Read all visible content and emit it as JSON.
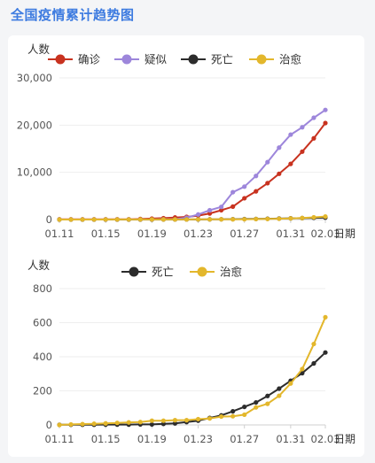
{
  "page": {
    "title": "全国疫情累计趋势图"
  },
  "charts": [
    {
      "ylabel": "人数",
      "xlabel": "日期",
      "yticks": [
        "0",
        "10,000",
        "20,000",
        "30,000"
      ],
      "xticks": [
        "01.11",
        "01.15",
        "01.19",
        "01.23",
        "01.27",
        "01.31",
        "02.03"
      ],
      "legend": [
        {
          "name": "确诊",
          "color": "#c8321f"
        },
        {
          "name": "疑似",
          "color": "#9d86db"
        },
        {
          "name": "死亡",
          "color": "#2c2c2c"
        },
        {
          "name": "治愈",
          "color": "#e3b72c"
        }
      ]
    },
    {
      "ylabel": "人数",
      "xlabel": "日期",
      "yticks": [
        "0",
        "200",
        "400",
        "600",
        "800"
      ],
      "xticks": [
        "01.11",
        "01.15",
        "01.19",
        "01.23",
        "01.27",
        "01.31",
        "02.03"
      ],
      "legend": [
        {
          "name": "死亡",
          "color": "#2c2c2c"
        },
        {
          "name": "治愈",
          "color": "#e3b72c"
        }
      ]
    }
  ],
  "chart_data": [
    {
      "type": "line",
      "x": [
        "01.11",
        "01.12",
        "01.13",
        "01.14",
        "01.15",
        "01.16",
        "01.17",
        "01.18",
        "01.19",
        "01.20",
        "01.21",
        "01.22",
        "01.23",
        "01.24",
        "01.25",
        "01.26",
        "01.27",
        "01.28",
        "01.29",
        "01.30",
        "01.31",
        "02.01",
        "02.02",
        "02.03"
      ],
      "ylim": [
        0,
        30000
      ],
      "grid": true,
      "legend_position": "top",
      "series": [
        {
          "name": "确诊",
          "color": "#c8321f",
          "values": [
            41,
            41,
            41,
            41,
            41,
            45,
            62,
            121,
            198,
            291,
            440,
            571,
            830,
            1287,
            1975,
            2744,
            4515,
            5974,
            7711,
            9692,
            11791,
            14380,
            17205,
            20438
          ]
        },
        {
          "name": "疑似",
          "color": "#9d86db",
          "values": [
            0,
            0,
            0,
            0,
            0,
            0,
            0,
            0,
            0,
            54,
            37,
            393,
            1072,
            1965,
            2684,
            5794,
            6973,
            9239,
            12167,
            15238,
            17988,
            19544,
            21558,
            23214
          ]
        },
        {
          "name": "死亡",
          "color": "#2c2c2c",
          "values": [
            1,
            1,
            1,
            1,
            2,
            2,
            2,
            3,
            3,
            6,
            9,
            17,
            25,
            41,
            56,
            80,
            106,
            132,
            170,
            213,
            259,
            304,
            361,
            425
          ]
        },
        {
          "name": "治愈",
          "color": "#e3b72c",
          "values": [
            0,
            3,
            5,
            7,
            9,
            12,
            15,
            17,
            25,
            25,
            28,
            28,
            34,
            38,
            49,
            51,
            60,
            103,
            124,
            171,
            243,
            328,
            475,
            632
          ]
        }
      ]
    },
    {
      "type": "line",
      "x": [
        "01.11",
        "01.12",
        "01.13",
        "01.14",
        "01.15",
        "01.16",
        "01.17",
        "01.18",
        "01.19",
        "01.20",
        "01.21",
        "01.22",
        "01.23",
        "01.24",
        "01.25",
        "01.26",
        "01.27",
        "01.28",
        "01.29",
        "01.30",
        "01.31",
        "02.01",
        "02.02",
        "02.03"
      ],
      "ylim": [
        0,
        800
      ],
      "grid": true,
      "legend_position": "top",
      "series": [
        {
          "name": "死亡",
          "color": "#2c2c2c",
          "values": [
            1,
            1,
            1,
            1,
            2,
            2,
            2,
            3,
            3,
            6,
            9,
            17,
            25,
            41,
            56,
            80,
            106,
            132,
            170,
            213,
            259,
            304,
            361,
            425
          ]
        },
        {
          "name": "治愈",
          "color": "#e3b72c",
          "values": [
            0,
            3,
            5,
            7,
            9,
            12,
            15,
            17,
            25,
            25,
            28,
            28,
            34,
            38,
            49,
            51,
            60,
            103,
            124,
            171,
            243,
            328,
            475,
            632
          ]
        }
      ]
    }
  ]
}
